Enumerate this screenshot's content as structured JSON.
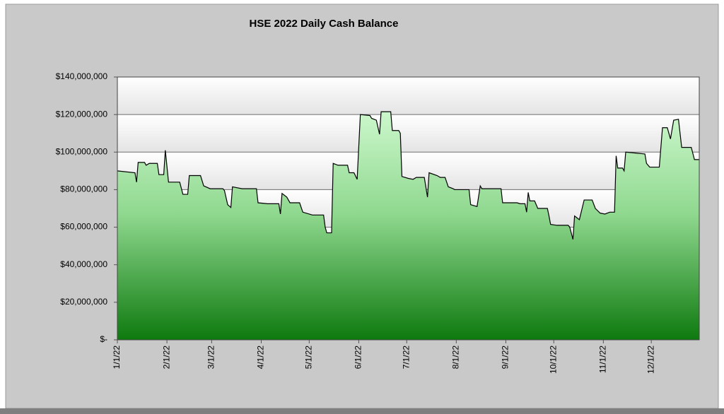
{
  "chart_data": {
    "type": "area",
    "title": "HSE 2022 Daily Cash Balance",
    "x": [
      "1/1/22",
      "1/12/22",
      "1/13/22",
      "1/14/22",
      "1/18/22",
      "1/19/22",
      "1/21/22",
      "1/26/22",
      "1/27/22",
      "1/30/22",
      "1/31/22",
      "2/2/22",
      "2/9/22",
      "2/11/22",
      "2/14/22",
      "2/15/22",
      "2/22/22",
      "2/24/22",
      "2/28/22",
      "3/8/22",
      "3/9/22",
      "3/11/22",
      "3/13/22",
      "3/14/22",
      "3/20/22",
      "3/29/22",
      "3/30/22",
      "4/5/22",
      "4/12/22",
      "4/13/22",
      "4/14/22",
      "4/17/22",
      "4/19/22",
      "4/25/22",
      "4/27/22",
      "5/3/22",
      "5/10/22",
      "5/11/22",
      "5/12/22",
      "5/15/22",
      "5/16/22",
      "5/19/22",
      "5/25/22",
      "5/26/22",
      "5/29/22",
      "5/31/22",
      "6/2/22",
      "6/8/22",
      "6/9/22",
      "6/12/22",
      "6/14/22",
      "6/15/22",
      "6/21/22",
      "6/22/22",
      "6/26/22",
      "6/27/22",
      "6/28/22",
      "7/2/22",
      "7/5/22",
      "7/7/22",
      "7/12/22",
      "7/14/22",
      "7/15/22",
      "7/20/22",
      "7/22/22",
      "7/25/22",
      "7/27/22",
      "7/30/22",
      "7/31/22",
      "8/9/22",
      "8/10/22",
      "8/14/22",
      "8/16/22",
      "8/17/22",
      "8/29/22",
      "8/30/22",
      "9/8/22",
      "9/10/22",
      "9/13/22",
      "9/14/22",
      "9/15/22",
      "9/16/22",
      "9/19/22",
      "9/21/22",
      "9/27/22",
      "9/28/22",
      "9/29/22",
      "10/3/22",
      "10/10/22",
      "10/11/22",
      "10/13/22",
      "10/14/22",
      "10/17/22",
      "10/20/22",
      "10/25/22",
      "10/27/22",
      "10/30/22",
      "11/2/22",
      "11/5/22",
      "11/8/22",
      "11/9/22",
      "11/10/22",
      "11/13/22",
      "11/14/22",
      "11/15/22",
      "11/21/22",
      "11/27/22",
      "11/28/22",
      "11/30/22",
      "12/6/22",
      "12/8/22",
      "12/11/22",
      "12/13/22",
      "12/15/22",
      "12/18/22",
      "12/20/22",
      "12/26/22",
      "12/28/22",
      "12/31/22"
    ],
    "series": [
      {
        "color": "#000000",
        "values": [
          90000000,
          89000000,
          84000000,
          94500000,
          94500000,
          93000000,
          94000000,
          94000000,
          88000000,
          88000000,
          101000000,
          84000000,
          84000000,
          77500000,
          77500000,
          87500000,
          87500000,
          82000000,
          80500000,
          80500000,
          79500000,
          72000000,
          70500000,
          81500000,
          80500000,
          80500000,
          73000000,
          72500000,
          72500000,
          67000000,
          78000000,
          76000000,
          73000000,
          73000000,
          68000000,
          66500000,
          66500000,
          60000000,
          57000000,
          57000000,
          94000000,
          93000000,
          93000000,
          89000000,
          89000000,
          85500000,
          120000000,
          119500000,
          118000000,
          117000000,
          109500000,
          121500000,
          121500000,
          111500000,
          111500000,
          110000000,
          87000000,
          86000000,
          85500000,
          86500000,
          86500000,
          76000000,
          89000000,
          87500000,
          86500000,
          86500000,
          81500000,
          80500000,
          80000000,
          80000000,
          72000000,
          71000000,
          82000000,
          80500000,
          80500000,
          73000000,
          73000000,
          72500000,
          72500000,
          68000000,
          78500000,
          74000000,
          74000000,
          70000000,
          70000000,
          66000000,
          61500000,
          61000000,
          61000000,
          60000000,
          53500000,
          66000000,
          64000000,
          74500000,
          74500000,
          70000000,
          67500000,
          67000000,
          68000000,
          68000000,
          98000000,
          91500000,
          91500000,
          90000000,
          100000000,
          99500000,
          99000000,
          94000000,
          92000000,
          92000000,
          113000000,
          113000000,
          107000000,
          117000000,
          117500000,
          102500000,
          102500000,
          96000000,
          96000000
        ]
      }
    ],
    "xlim": [
      "1/1/22",
      "12/31/22"
    ],
    "xticks": [
      "1/1/22",
      "2/1/22",
      "3/1/22",
      "4/1/22",
      "5/1/22",
      "6/1/22",
      "7/1/22",
      "8/1/22",
      "9/1/22",
      "10/1/22",
      "11/1/22",
      "12/1/22"
    ],
    "ylim": [
      0,
      140000000
    ],
    "yticks": [
      {
        "value": 0,
        "label": "$-"
      },
      {
        "value": 20000000,
        "label": "$20,000,000"
      },
      {
        "value": 40000000,
        "label": "$40,000,000"
      },
      {
        "value": 60000000,
        "label": "$60,000,000"
      },
      {
        "value": 80000000,
        "label": "$80,000,000"
      },
      {
        "value": 100000000,
        "label": "$100,000,000"
      },
      {
        "value": 120000000,
        "label": "$120,000,000"
      },
      {
        "value": 140000000,
        "label": "$140,000,000"
      }
    ],
    "grid": true
  }
}
